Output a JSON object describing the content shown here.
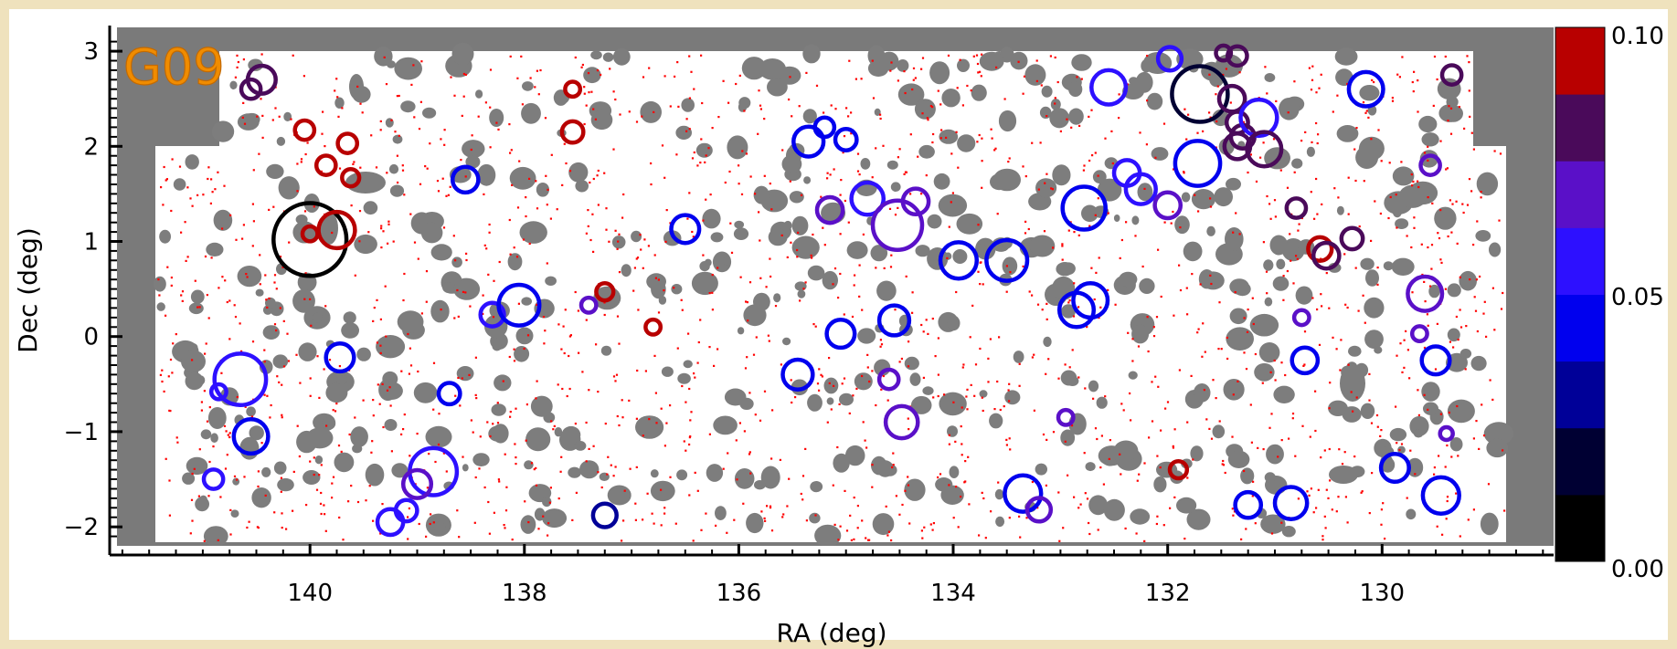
{
  "chart_data": {
    "type": "scatter",
    "field_label": "G09",
    "xlabel": "RA (deg)",
    "ylabel": "Dec (deg)",
    "xlim": [
      141.8,
      128.4
    ],
    "ylim": [
      -2.2,
      3.25
    ],
    "x_ticks": [
      140,
      138,
      136,
      134,
      132,
      130
    ],
    "y_ticks": [
      3,
      2,
      1,
      0,
      -1,
      -2
    ],
    "x_tick_labels": [
      "140",
      "138",
      "136",
      "134",
      "132",
      "130"
    ],
    "y_tick_labels": [
      "3",
      "2",
      "1",
      "0",
      "−1",
      "−2"
    ],
    "colorbar": {
      "min_label": "0.00",
      "mid_label": "0.05",
      "max_label": "0.10",
      "range": [
        0.0,
        0.1
      ],
      "colors": [
        "#000000",
        "#000033",
        "#000098",
        "#0000ee",
        "#2d10ff",
        "#5a10c8",
        "#4a0a5a",
        "#b80000"
      ]
    },
    "footprint_color": "#7a7a7a",
    "galaxy_dot_color": "#ff0000",
    "circle_scale": "radius proportional to size value",
    "circles": [
      {
        "ra": 140.45,
        "dec": 2.7,
        "size": 0.13,
        "z": 0.085
      },
      {
        "ra": 140.55,
        "dec": 2.6,
        "size": 0.09,
        "z": 0.085
      },
      {
        "ra": 140.05,
        "dec": 2.17,
        "size": 0.09,
        "z": 0.095
      },
      {
        "ra": 139.65,
        "dec": 2.03,
        "size": 0.09,
        "z": 0.095
      },
      {
        "ra": 139.85,
        "dec": 1.8,
        "size": 0.09,
        "z": 0.095
      },
      {
        "ra": 139.62,
        "dec": 1.67,
        "size": 0.08,
        "z": 0.099
      },
      {
        "ra": 140.0,
        "dec": 1.02,
        "size": 0.34,
        "z": 0.01
      },
      {
        "ra": 139.75,
        "dec": 1.12,
        "size": 0.17,
        "z": 0.098
      },
      {
        "ra": 140.0,
        "dec": 1.08,
        "size": 0.07,
        "z": 0.097
      },
      {
        "ra": 138.55,
        "dec": 1.65,
        "size": 0.12,
        "z": 0.045
      },
      {
        "ra": 140.65,
        "dec": -0.45,
        "size": 0.24,
        "z": 0.055
      },
      {
        "ra": 140.85,
        "dec": -0.58,
        "size": 0.07,
        "z": 0.056
      },
      {
        "ra": 139.72,
        "dec": -0.22,
        "size": 0.13,
        "z": 0.045
      },
      {
        "ra": 140.55,
        "dec": -1.05,
        "size": 0.16,
        "z": 0.045
      },
      {
        "ra": 140.9,
        "dec": -1.5,
        "size": 0.09,
        "z": 0.06
      },
      {
        "ra": 138.7,
        "dec": -0.6,
        "size": 0.1,
        "z": 0.045
      },
      {
        "ra": 138.3,
        "dec": 0.23,
        "size": 0.11,
        "z": 0.055
      },
      {
        "ra": 138.05,
        "dec": 0.33,
        "size": 0.19,
        "z": 0.045
      },
      {
        "ra": 138.85,
        "dec": -1.42,
        "size": 0.22,
        "z": 0.055
      },
      {
        "ra": 139.0,
        "dec": -1.55,
        "size": 0.13,
        "z": 0.065
      },
      {
        "ra": 139.1,
        "dec": -1.83,
        "size": 0.1,
        "z": 0.055
      },
      {
        "ra": 139.25,
        "dec": -1.95,
        "size": 0.12,
        "z": 0.05
      },
      {
        "ra": 137.55,
        "dec": 2.6,
        "size": 0.07,
        "z": 0.099
      },
      {
        "ra": 137.55,
        "dec": 2.15,
        "size": 0.1,
        "z": 0.099
      },
      {
        "ra": 137.25,
        "dec": 0.47,
        "size": 0.08,
        "z": 0.099
      },
      {
        "ra": 137.4,
        "dec": 0.33,
        "size": 0.07,
        "z": 0.075
      },
      {
        "ra": 136.8,
        "dec": 0.1,
        "size": 0.07,
        "z": 0.098
      },
      {
        "ra": 136.5,
        "dec": 1.13,
        "size": 0.13,
        "z": 0.045
      },
      {
        "ra": 137.25,
        "dec": -1.88,
        "size": 0.11,
        "z": 0.035
      },
      {
        "ra": 135.35,
        "dec": 2.05,
        "size": 0.14,
        "z": 0.045
      },
      {
        "ra": 135.2,
        "dec": 2.2,
        "size": 0.09,
        "z": 0.045
      },
      {
        "ra": 135.0,
        "dec": 2.07,
        "size": 0.1,
        "z": 0.045
      },
      {
        "ra": 135.15,
        "dec": 1.33,
        "size": 0.12,
        "z": 0.065
      },
      {
        "ra": 134.8,
        "dec": 1.45,
        "size": 0.15,
        "z": 0.05
      },
      {
        "ra": 134.52,
        "dec": 1.17,
        "size": 0.23,
        "z": 0.075
      },
      {
        "ra": 134.35,
        "dec": 1.42,
        "size": 0.12,
        "z": 0.07
      },
      {
        "ra": 133.95,
        "dec": 0.8,
        "size": 0.17,
        "z": 0.045
      },
      {
        "ra": 133.5,
        "dec": 0.8,
        "size": 0.19,
        "z": 0.045
      },
      {
        "ra": 135.05,
        "dec": 0.03,
        "size": 0.13,
        "z": 0.045
      },
      {
        "ra": 134.55,
        "dec": 0.17,
        "size": 0.14,
        "z": 0.045
      },
      {
        "ra": 135.45,
        "dec": -0.4,
        "size": 0.14,
        "z": 0.045
      },
      {
        "ra": 134.6,
        "dec": -0.45,
        "size": 0.09,
        "z": 0.07
      },
      {
        "ra": 134.48,
        "dec": -0.9,
        "size": 0.15,
        "z": 0.07
      },
      {
        "ra": 133.35,
        "dec": -1.65,
        "size": 0.17,
        "z": 0.045
      },
      {
        "ra": 133.2,
        "dec": -1.82,
        "size": 0.11,
        "z": 0.065
      },
      {
        "ra": 132.55,
        "dec": 2.62,
        "size": 0.16,
        "z": 0.06
      },
      {
        "ra": 131.98,
        "dec": 2.92,
        "size": 0.11,
        "z": 0.05
      },
      {
        "ra": 131.7,
        "dec": 2.55,
        "size": 0.26,
        "z": 0.02
      },
      {
        "ra": 131.48,
        "dec": 2.98,
        "size": 0.07,
        "z": 0.08
      },
      {
        "ra": 131.35,
        "dec": 2.95,
        "size": 0.09,
        "z": 0.08
      },
      {
        "ra": 131.4,
        "dec": 2.5,
        "size": 0.12,
        "z": 0.08
      },
      {
        "ra": 131.35,
        "dec": 2.25,
        "size": 0.1,
        "z": 0.08
      },
      {
        "ra": 131.3,
        "dec": 2.1,
        "size": 0.11,
        "z": 0.08
      },
      {
        "ra": 131.35,
        "dec": 2.0,
        "size": 0.12,
        "z": 0.08
      },
      {
        "ra": 131.15,
        "dec": 2.3,
        "size": 0.17,
        "z": 0.05
      },
      {
        "ra": 131.1,
        "dec": 1.97,
        "size": 0.16,
        "z": 0.08
      },
      {
        "ra": 131.72,
        "dec": 1.82,
        "size": 0.21,
        "z": 0.045
      },
      {
        "ra": 132.38,
        "dec": 1.72,
        "size": 0.12,
        "z": 0.06
      },
      {
        "ra": 132.25,
        "dec": 1.55,
        "size": 0.14,
        "z": 0.05
      },
      {
        "ra": 132.0,
        "dec": 1.38,
        "size": 0.12,
        "z": 0.065
      },
      {
        "ra": 132.78,
        "dec": 1.35,
        "size": 0.2,
        "z": 0.045
      },
      {
        "ra": 132.85,
        "dec": 0.28,
        "size": 0.16,
        "z": 0.045
      },
      {
        "ra": 132.72,
        "dec": 0.38,
        "size": 0.16,
        "z": 0.045
      },
      {
        "ra": 132.95,
        "dec": -0.85,
        "size": 0.07,
        "z": 0.075
      },
      {
        "ra": 131.9,
        "dec": -1.4,
        "size": 0.08,
        "z": 0.095
      },
      {
        "ra": 131.25,
        "dec": -1.77,
        "size": 0.12,
        "z": 0.045
      },
      {
        "ra": 130.85,
        "dec": -1.75,
        "size": 0.15,
        "z": 0.045
      },
      {
        "ra": 130.8,
        "dec": 1.35,
        "size": 0.09,
        "z": 0.08
      },
      {
        "ra": 130.58,
        "dec": 0.92,
        "size": 0.11,
        "z": 0.095
      },
      {
        "ra": 130.52,
        "dec": 0.85,
        "size": 0.12,
        "z": 0.08
      },
      {
        "ra": 130.28,
        "dec": 1.03,
        "size": 0.1,
        "z": 0.085
      },
      {
        "ra": 130.75,
        "dec": 0.2,
        "size": 0.07,
        "z": 0.075
      },
      {
        "ra": 130.72,
        "dec": -0.25,
        "size": 0.12,
        "z": 0.045
      },
      {
        "ra": 130.15,
        "dec": 2.6,
        "size": 0.16,
        "z": 0.045
      },
      {
        "ra": 129.55,
        "dec": 1.8,
        "size": 0.09,
        "z": 0.075
      },
      {
        "ra": 129.35,
        "dec": 2.75,
        "size": 0.09,
        "z": 0.08
      },
      {
        "ra": 129.6,
        "dec": 0.45,
        "size": 0.16,
        "z": 0.075
      },
      {
        "ra": 129.65,
        "dec": 0.03,
        "size": 0.07,
        "z": 0.075
      },
      {
        "ra": 129.5,
        "dec": -0.25,
        "size": 0.13,
        "z": 0.045
      },
      {
        "ra": 129.4,
        "dec": -1.02,
        "size": 0.06,
        "z": 0.075
      },
      {
        "ra": 129.88,
        "dec": -1.38,
        "size": 0.13,
        "z": 0.045
      },
      {
        "ra": 129.45,
        "dec": -1.67,
        "size": 0.17,
        "z": 0.045
      }
    ]
  }
}
